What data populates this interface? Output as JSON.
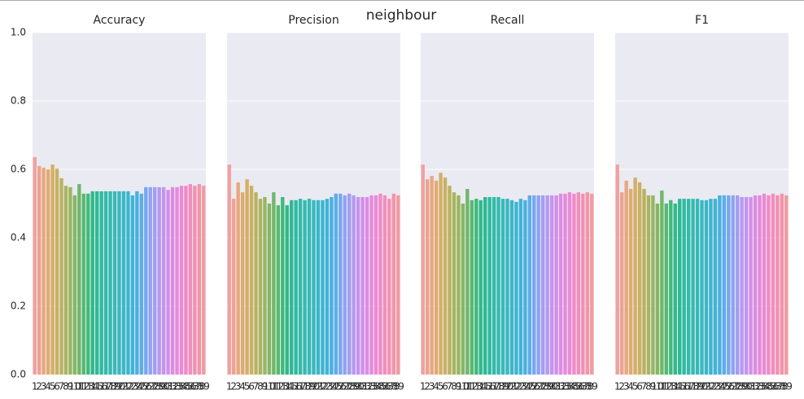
{
  "suptitle": "neighbour",
  "chart_data": [
    {
      "type": "bar",
      "title": "Accuracy",
      "categories": [
        "1",
        "2",
        "3",
        "4",
        "5",
        "6",
        "7",
        "8",
        "9",
        "10",
        "11",
        "12",
        "13",
        "14",
        "15",
        "16",
        "17",
        "18",
        "19",
        "20",
        "21",
        "22",
        "23",
        "24",
        "25",
        "26",
        "27",
        "28",
        "29",
        "30",
        "31",
        "32",
        "33",
        "34",
        "35",
        "36",
        "37",
        "38",
        "39"
      ],
      "values": [
        0.636,
        0.61,
        0.605,
        0.6,
        0.614,
        0.602,
        0.574,
        0.552,
        0.548,
        0.524,
        0.557,
        0.529,
        0.529,
        0.536,
        0.536,
        0.536,
        0.536,
        0.536,
        0.536,
        0.536,
        0.536,
        0.536,
        0.524,
        0.536,
        0.529,
        0.548,
        0.548,
        0.548,
        0.548,
        0.548,
        0.54,
        0.548,
        0.548,
        0.552,
        0.552,
        0.557,
        0.552,
        0.557,
        0.552
      ],
      "colors": [
        "#f1a0a0",
        "#eda38f",
        "#e8a77e",
        "#e0ab6f",
        "#d6ae66",
        "#c9b161",
        "#bab35f",
        "#aab45f",
        "#98b660",
        "#85b763",
        "#6fb868",
        "#58b970",
        "#3fba7b",
        "#2fba88",
        "#2cba94",
        "#2ebb9f",
        "#31bba8",
        "#34bab0",
        "#36bab8",
        "#37b9bf",
        "#39b8c7",
        "#3bb6cf",
        "#3eb4d8",
        "#47b1e1",
        "#5dadea",
        "#76a8f1",
        "#8ea3f4",
        "#a49df4",
        "#b698f2",
        "#c593ef",
        "#d28fea",
        "#dd8be4",
        "#e689dc",
        "#ed88d3",
        "#f18ac8",
        "#f38dbd",
        "#f490b2",
        "#f494a8",
        "#f39aa0"
      ],
      "ylim": [
        0,
        1
      ],
      "yticks": [
        {
          "value": 0,
          "label": "0.0"
        },
        {
          "value": 0.2,
          "label": "0.2"
        },
        {
          "value": 0.4,
          "label": "0.4"
        },
        {
          "value": 0.6,
          "label": "0.6"
        },
        {
          "value": 0.8,
          "label": "0.8"
        },
        {
          "value": 1,
          "label": "1.0"
        }
      ],
      "grid": true
    },
    {
      "type": "bar",
      "title": "Precision",
      "categories": [
        "1",
        "2",
        "3",
        "4",
        "5",
        "6",
        "7",
        "8",
        "9",
        "10",
        "11",
        "12",
        "13",
        "14",
        "15",
        "16",
        "17",
        "18",
        "19",
        "20",
        "21",
        "22",
        "23",
        "24",
        "25",
        "26",
        "27",
        "28",
        "29",
        "30",
        "31",
        "32",
        "33",
        "34",
        "35",
        "36",
        "37",
        "38",
        "39"
      ],
      "values": [
        0.614,
        0.514,
        0.562,
        0.533,
        0.571,
        0.552,
        0.533,
        0.514,
        0.519,
        0.5,
        0.533,
        0.495,
        0.519,
        0.495,
        0.51,
        0.51,
        0.514,
        0.51,
        0.514,
        0.51,
        0.51,
        0.51,
        0.514,
        0.519,
        0.529,
        0.529,
        0.524,
        0.529,
        0.524,
        0.519,
        0.519,
        0.519,
        0.524,
        0.524,
        0.529,
        0.524,
        0.514,
        0.529,
        0.524
      ],
      "colors": [
        "#f1a0a0",
        "#eda38f",
        "#e8a77e",
        "#e0ab6f",
        "#d6ae66",
        "#c9b161",
        "#bab35f",
        "#aab45f",
        "#98b660",
        "#85b763",
        "#6fb868",
        "#58b970",
        "#3fba7b",
        "#2fba88",
        "#2cba94",
        "#2ebb9f",
        "#31bba8",
        "#34bab0",
        "#36bab8",
        "#37b9bf",
        "#39b8c7",
        "#3bb6cf",
        "#3eb4d8",
        "#47b1e1",
        "#5dadea",
        "#76a8f1",
        "#8ea3f4",
        "#a49df4",
        "#b698f2",
        "#c593ef",
        "#d28fea",
        "#dd8be4",
        "#e689dc",
        "#ed88d3",
        "#f18ac8",
        "#f38dbd",
        "#f490b2",
        "#f494a8",
        "#f39aa0"
      ],
      "ylim": [
        0,
        1
      ],
      "yticks": [
        0,
        0.2,
        0.4,
        0.6,
        0.8,
        1
      ],
      "grid": true
    },
    {
      "type": "bar",
      "title": "Recall",
      "categories": [
        "1",
        "2",
        "3",
        "4",
        "5",
        "6",
        "7",
        "8",
        "9",
        "10",
        "11",
        "12",
        "13",
        "14",
        "15",
        "16",
        "17",
        "18",
        "19",
        "20",
        "21",
        "22",
        "23",
        "24",
        "25",
        "26",
        "27",
        "28",
        "29",
        "30",
        "31",
        "32",
        "33",
        "34",
        "35",
        "36",
        "37",
        "38",
        "39"
      ],
      "values": [
        0.614,
        0.571,
        0.581,
        0.567,
        0.59,
        0.576,
        0.552,
        0.533,
        0.524,
        0.5,
        0.543,
        0.51,
        0.514,
        0.51,
        0.519,
        0.519,
        0.519,
        0.519,
        0.514,
        0.514,
        0.51,
        0.505,
        0.514,
        0.51,
        0.524,
        0.524,
        0.524,
        0.524,
        0.524,
        0.524,
        0.524,
        0.529,
        0.529,
        0.533,
        0.529,
        0.533,
        0.529,
        0.533,
        0.529
      ],
      "colors": [
        "#f1a0a0",
        "#eda38f",
        "#e8a77e",
        "#e0ab6f",
        "#d6ae66",
        "#c9b161",
        "#bab35f",
        "#aab45f",
        "#98b660",
        "#85b763",
        "#6fb868",
        "#58b970",
        "#3fba7b",
        "#2fba88",
        "#2cba94",
        "#2ebb9f",
        "#31bba8",
        "#34bab0",
        "#36bab8",
        "#37b9bf",
        "#39b8c7",
        "#3bb6cf",
        "#3eb4d8",
        "#47b1e1",
        "#5dadea",
        "#76a8f1",
        "#8ea3f4",
        "#a49df4",
        "#b698f2",
        "#c593ef",
        "#d28fea",
        "#dd8be4",
        "#e689dc",
        "#ed88d3",
        "#f18ac8",
        "#f38dbd",
        "#f490b2",
        "#f494a8",
        "#f39aa0"
      ],
      "ylim": [
        0,
        1
      ],
      "yticks": [
        0,
        0.2,
        0.4,
        0.6,
        0.8,
        1
      ],
      "grid": true
    },
    {
      "type": "bar",
      "title": "F1",
      "categories": [
        "1",
        "2",
        "3",
        "4",
        "5",
        "6",
        "7",
        "8",
        "9",
        "10",
        "11",
        "12",
        "13",
        "14",
        "15",
        "16",
        "17",
        "18",
        "19",
        "20",
        "21",
        "22",
        "23",
        "24",
        "25",
        "26",
        "27",
        "28",
        "29",
        "30",
        "31",
        "32",
        "33",
        "34",
        "35",
        "36",
        "37",
        "38",
        "39"
      ],
      "values": [
        0.614,
        0.533,
        0.567,
        0.543,
        0.576,
        0.562,
        0.543,
        0.524,
        0.524,
        0.5,
        0.538,
        0.5,
        0.51,
        0.5,
        0.514,
        0.514,
        0.514,
        0.514,
        0.514,
        0.51,
        0.51,
        0.514,
        0.514,
        0.524,
        0.524,
        0.524,
        0.524,
        0.524,
        0.519,
        0.519,
        0.519,
        0.524,
        0.524,
        0.529,
        0.524,
        0.529,
        0.524,
        0.529,
        0.524
      ],
      "colors": [
        "#f1a0a0",
        "#eda38f",
        "#e8a77e",
        "#e0ab6f",
        "#d6ae66",
        "#c9b161",
        "#bab35f",
        "#aab45f",
        "#98b660",
        "#85b763",
        "#6fb868",
        "#58b970",
        "#3fba7b",
        "#2fba88",
        "#2cba94",
        "#2ebb9f",
        "#31bba8",
        "#34bab0",
        "#36bab8",
        "#37b9bf",
        "#39b8c7",
        "#3bb6cf",
        "#3eb4d8",
        "#47b1e1",
        "#5dadea",
        "#76a8f1",
        "#8ea3f4",
        "#a49df4",
        "#b698f2",
        "#c593ef",
        "#d28fea",
        "#dd8be4",
        "#e689dc",
        "#ed88d3",
        "#f18ac8",
        "#f38dbd",
        "#f490b2",
        "#f494a8",
        "#f39aa0"
      ],
      "ylim": [
        0,
        1
      ],
      "yticks": [
        0,
        0.2,
        0.4,
        0.6,
        0.8,
        1
      ],
      "grid": true
    }
  ]
}
